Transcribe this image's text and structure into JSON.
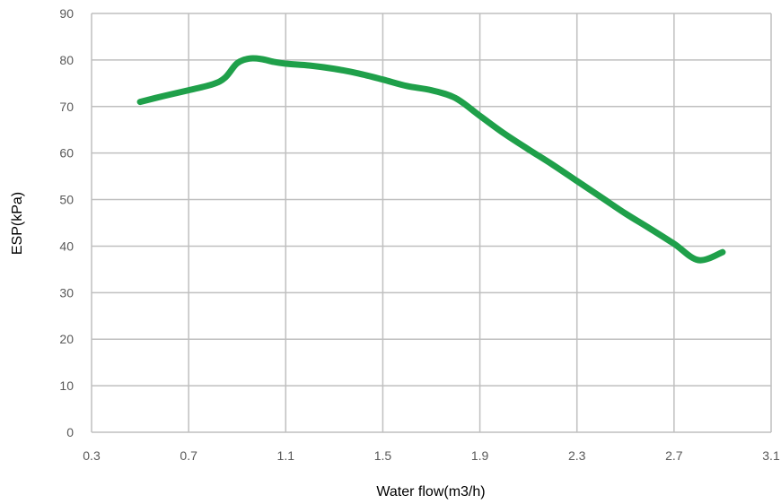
{
  "chart_data": {
    "type": "line",
    "title": "",
    "xlabel": "Water flow(m3/h)",
    "ylabel": "ESP(kPa)",
    "xlim": [
      0.3,
      3.1
    ],
    "ylim": [
      0,
      90
    ],
    "x_ticks": [
      "0.3",
      "0.7",
      "1.1",
      "1.5",
      "1.9",
      "2.3",
      "2.7",
      "3.1"
    ],
    "y_ticks": [
      "0",
      "10",
      "20",
      "30",
      "40",
      "50",
      "60",
      "70",
      "80",
      "90"
    ],
    "grid": true,
    "legend": "none",
    "series": [
      {
        "color": "#1fa04a",
        "x": [
          0.5,
          0.6,
          0.7,
          0.8,
          0.85,
          0.9,
          0.95,
          1.0,
          1.05,
          1.1,
          1.2,
          1.3,
          1.4,
          1.5,
          1.6,
          1.7,
          1.8,
          1.9,
          2.0,
          2.1,
          2.2,
          2.3,
          2.4,
          2.5,
          2.6,
          2.7,
          2.8,
          2.9
        ],
        "y": [
          71,
          72.3,
          73.5,
          74.8,
          76.2,
          79.3,
          80.3,
          80.2,
          79.6,
          79.2,
          78.8,
          78.1,
          77.1,
          75.8,
          74.4,
          73.5,
          71.8,
          68.0,
          64.2,
          60.8,
          57.5,
          54.0,
          50.5,
          47.0,
          43.8,
          40.5,
          37.0,
          38.7
        ]
      }
    ]
  }
}
